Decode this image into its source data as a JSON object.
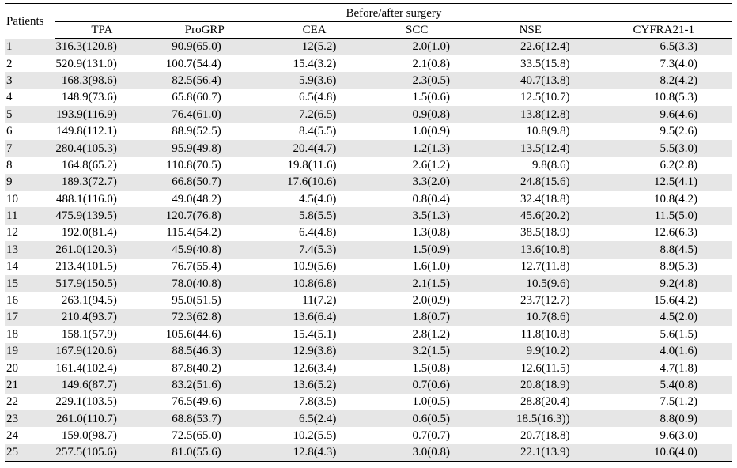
{
  "table": {
    "patients_header": "Patients",
    "group_header": "Before/after surgery",
    "columns": [
      "TPA",
      "ProGRP",
      "CEA",
      "SCC",
      "NSE",
      "CYFRA21-1"
    ],
    "rows": [
      [
        "1",
        "316.3(120.8)",
        "90.9(65.0)",
        "12(5.2)",
        "2.0(1.0)",
        "22.6(12.4)",
        "6.5(3.3)"
      ],
      [
        "2",
        "520.9(131.0)",
        "100.7(54.4)",
        "15.4(3.2)",
        "2.1(0.8)",
        "33.5(15.8)",
        "7.3(4.0)"
      ],
      [
        "3",
        "168.3(98.6)",
        "82.5(56.4)",
        "5.9(3.6)",
        "2.3(0.5)",
        "40.7(13.8)",
        "8.2(4.2)"
      ],
      [
        "4",
        "148.9(73.6)",
        "65.8(60.7)",
        "6.5(4.8)",
        "1.5(0.6)",
        "12.5(10.7)",
        "10.8(5.3)"
      ],
      [
        "5",
        "193.9(116.9)",
        "76.4(61.0)",
        "7.2(6.5)",
        "0.9(0.8)",
        "13.8(12.8)",
        "9.6(4.6)"
      ],
      [
        "6",
        "149.8(112.1)",
        "88.9(52.5)",
        "8.4(5.5)",
        "1.0(0.9)",
        "10.8(9.8)",
        "9.5(2.6)"
      ],
      [
        "7",
        "280.4(105.3)",
        "95.9(49.8)",
        "20.4(4.7)",
        "1.2(1.3)",
        "13.5(12.4)",
        "5.5(3.0)"
      ],
      [
        "8",
        "164.8(65.2)",
        "110.8(70.5)",
        "19.8(11.6)",
        "2.6(1.2)",
        "9.8(8.6)",
        "6.2(2.8)"
      ],
      [
        "9",
        "189.3(72.7)",
        "66.8(50.7)",
        "17.6(10.6)",
        "3.3(2.0)",
        "24.8(15.6)",
        "12.5(4.1)"
      ],
      [
        "10",
        "488.1(116.0)",
        "49.0(48.2)",
        "4.5(4.0)",
        "0.8(0.4)",
        "32.4(18.8)",
        "10.8(4.2)"
      ],
      [
        "11",
        "475.9(139.5)",
        "120.7(76.8)",
        "5.8(5.5)",
        "3.5(1.3)",
        "45.6(20.2)",
        "11.5(5.0)"
      ],
      [
        "12",
        "192.0(81.4)",
        "115.4(54.2)",
        "6.4(4.8)",
        "1.3(0.8)",
        "38.5(18.9)",
        "12.6(6.3)"
      ],
      [
        "13",
        "261.0(120.3)",
        "45.9(40.8)",
        "7.4(5.3)",
        "1.5(0.9)",
        "13.6(10.8)",
        "8.8(4.5)"
      ],
      [
        "14",
        "213.4(101.5)",
        "76.7(55.4)",
        "10.9(5.6)",
        "1.6(1.0)",
        "12.7(11.8)",
        "8.9(5.3)"
      ],
      [
        "15",
        "517.9(150.5)",
        "78.0(40.8)",
        "10.8(6.8)",
        "2.1(1.5)",
        "10.5(9.6)",
        "9.2(4.8)"
      ],
      [
        "16",
        "263.1(94.5)",
        "95.0(51.5)",
        "11(7.2)",
        "2.0(0.9)",
        "23.7(12.7)",
        "15.6(4.2)"
      ],
      [
        "17",
        "210.4(93.7)",
        "72.3(62.8)",
        "13.6(6.4)",
        "1.8(0.7)",
        "10.7(8.6)",
        "4.5(2.0)"
      ],
      [
        "18",
        "158.1(57.9)",
        "105.6(44.6)",
        "15.4(5.1)",
        "2.8(1.2)",
        "11.8(10.8)",
        "5.6(1.5)"
      ],
      [
        "19",
        "167.9(120.6)",
        "88.5(46.3)",
        "12.9(3.8)",
        "3.2(1.5)",
        "9.9(10.2)",
        "4.0(1.6)"
      ],
      [
        "20",
        "161.4(102.4)",
        "87.8(40.2)",
        "12.6(3.4)",
        "1.5(0.8)",
        "12.6(11.5)",
        "4.7(1.8)"
      ],
      [
        "21",
        "149.6(87.7)",
        "83.2(51.6)",
        "13.6(5.2)",
        "0.7(0.6)",
        "20.8(18.9)",
        "5.4(0.8)"
      ],
      [
        "22",
        "229.1(103.5)",
        "76.5(49.6)",
        "7.8(3.5)",
        "1.0(0.5)",
        "28.8(20.4)",
        "7.5(1.2)"
      ],
      [
        "23",
        "261.0(110.7)",
        "68.8(53.7)",
        "6.5(2.4)",
        "0.6(0.5)",
        "18.5(16.3))",
        "8.8(0.9)"
      ],
      [
        "24",
        "159.0(98.7)",
        "72.5(65.0)",
        "10.2(5.5)",
        "0.7(0.7)",
        "20.7(18.8)",
        "9.6(3.0)"
      ],
      [
        "25",
        "257.5(105.6)",
        "81.0(55.6)",
        "12.8(4.3)",
        "3.0(0.8)",
        "22.1(13.9)",
        "10.6(4.0)"
      ]
    ]
  }
}
